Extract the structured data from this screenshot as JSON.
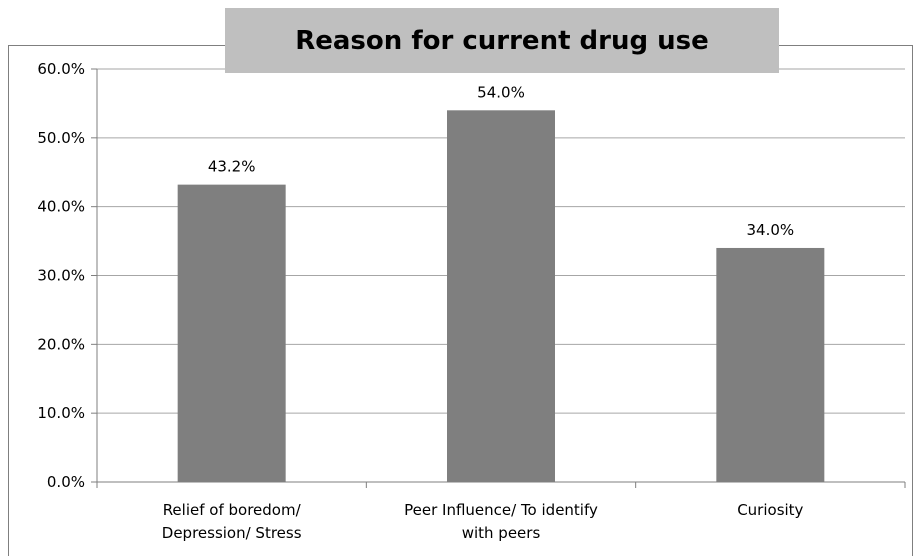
{
  "chart_data": {
    "type": "bar",
    "title": "Reason for current drug use",
    "categories": [
      [
        "Relief of boredom/",
        "Depression/ Stress"
      ],
      [
        "Peer Influence/ To identify",
        "with peers"
      ],
      [
        "Curiosity"
      ]
    ],
    "values": [
      43.2,
      54.0,
      34.0
    ],
    "data_labels": [
      "43.2%",
      "54.0%",
      "34.0%"
    ],
    "y_tick_labels": [
      "0.0%",
      "10.0%",
      "20.0%",
      "30.0%",
      "40.0%",
      "50.0%",
      "60.0%"
    ],
    "ylim": [
      0,
      60
    ],
    "y_tick_step": 10,
    "xlabel": "",
    "ylabel": "",
    "grid": true,
    "legend": "none",
    "bar_color": "#7f7f7f",
    "grid_color": "#a6a6a6",
    "title_background": "#bfbfbf"
  }
}
